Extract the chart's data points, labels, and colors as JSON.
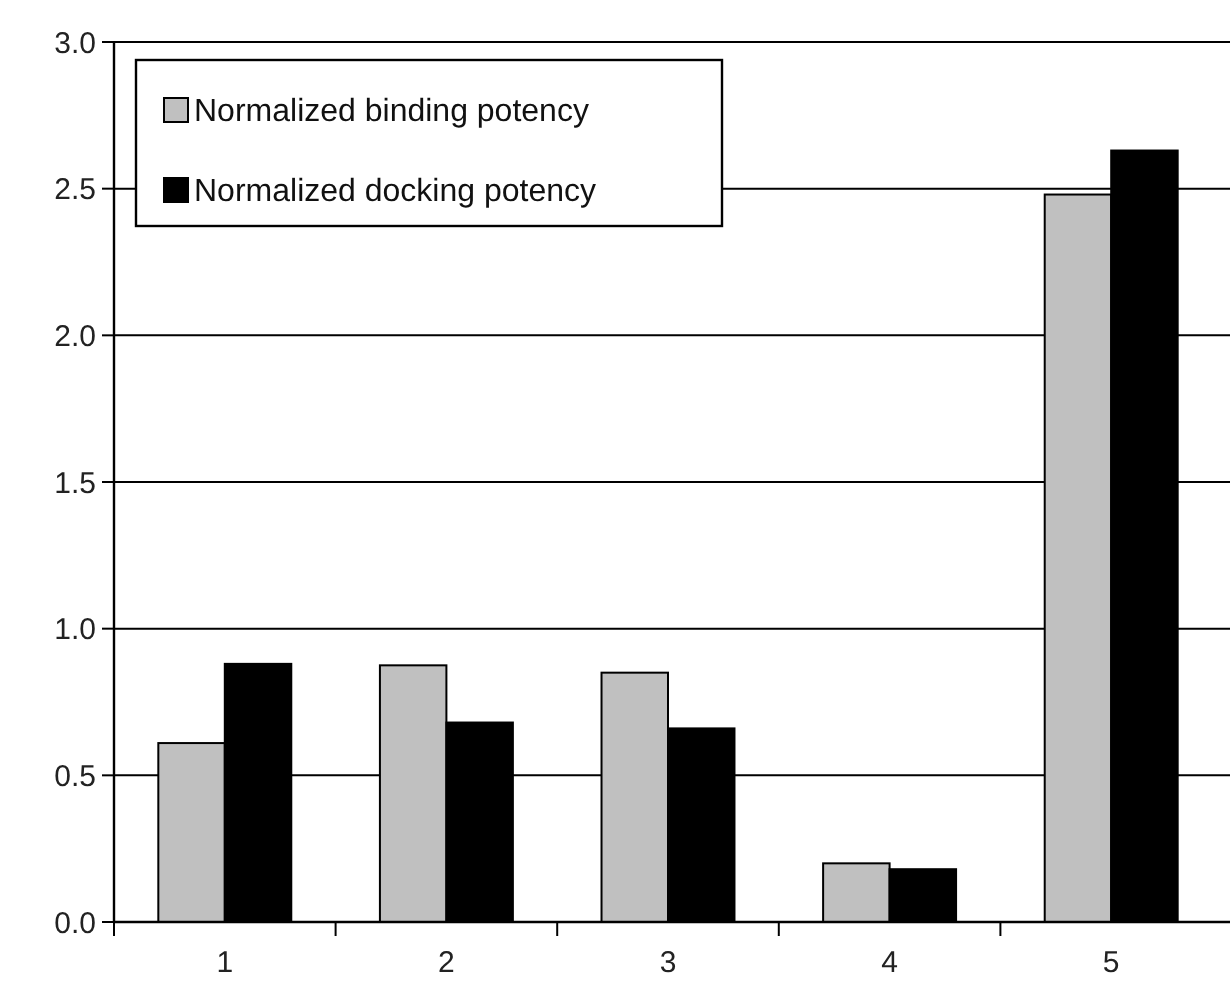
{
  "chart_data": {
    "type": "bar",
    "categories": [
      "1",
      "2",
      "3",
      "4",
      "5"
    ],
    "series": [
      {
        "name": "Normalized binding potency",
        "color": "#c0c0c0",
        "values": [
          0.61,
          0.875,
          0.85,
          0.2,
          2.48
        ]
      },
      {
        "name": "Normalized docking potency",
        "color": "#000000",
        "values": [
          0.88,
          0.68,
          0.66,
          0.18,
          2.63
        ]
      }
    ],
    "ylim": [
      0,
      3
    ],
    "yticks": [
      {
        "value": 0,
        "label": "0.0"
      },
      {
        "value": 0.5,
        "label": "0.5"
      },
      {
        "value": 1,
        "label": "1.0"
      },
      {
        "value": 1.5,
        "label": "1.5"
      },
      {
        "value": 2,
        "label": "2.0"
      },
      {
        "value": 2.5,
        "label": "2.5"
      },
      {
        "value": 3,
        "label": "3.0"
      }
    ],
    "grid": "y",
    "legend": "top left"
  }
}
